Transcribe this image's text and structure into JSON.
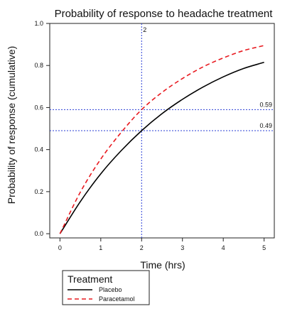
{
  "chart_data": {
    "type": "line",
    "title": "Probability of response to headache treatment",
    "xlabel": "Time (hrs)",
    "ylabel": "Probability of response (cumulative)",
    "xlim": [
      -0.25,
      5.25
    ],
    "ylim": [
      -0.02,
      1.0
    ],
    "xticks": [
      0,
      1,
      2,
      3,
      4,
      5
    ],
    "xtick_labels": [
      "0",
      "1",
      "2",
      "3",
      "4",
      "5"
    ],
    "yticks": [
      0.0,
      0.2,
      0.4,
      0.6,
      0.8,
      1.0
    ],
    "ytick_labels": [
      "0.0",
      "0.2",
      "0.4",
      "0.6",
      "0.8",
      "1.0"
    ],
    "x": [
      0,
      0.5,
      1,
      1.5,
      2,
      2.5,
      3,
      3.5,
      4,
      4.5,
      5
    ],
    "series": [
      {
        "name": "Placebo",
        "color": "#000000",
        "style": "solid",
        "values": [
          0.0,
          0.153,
          0.285,
          0.395,
          0.49,
          0.571,
          0.639,
          0.697,
          0.746,
          0.786,
          0.815
        ]
      },
      {
        "name": "Paracetamol",
        "color": "#e8191f",
        "style": "dashed",
        "values": [
          0.0,
          0.198,
          0.355,
          0.482,
          0.59,
          0.672,
          0.738,
          0.793,
          0.836,
          0.871,
          0.895
        ]
      }
    ],
    "reference_lines": {
      "vertical": [
        {
          "x": 2,
          "label": "2"
        }
      ],
      "horizontal": [
        {
          "y": 0.59,
          "label": "0.59"
        },
        {
          "y": 0.49,
          "label": "0.49"
        }
      ],
      "color": "#2a3fd6"
    },
    "legend": {
      "title": "Treatment",
      "position": "bottom-left",
      "items": [
        "Placebo",
        "Paracetamol"
      ]
    },
    "grid": false
  }
}
